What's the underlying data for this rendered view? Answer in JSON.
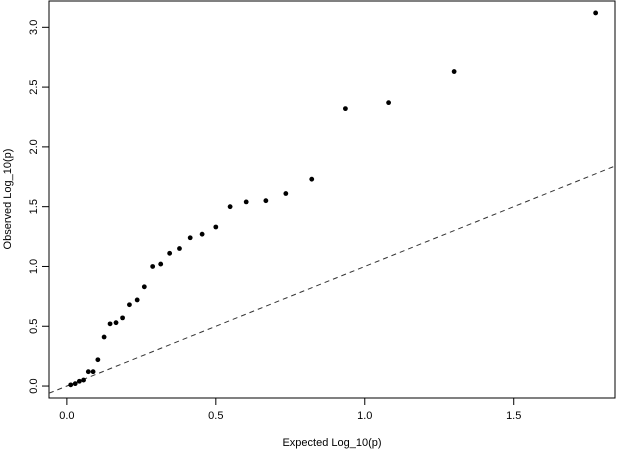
{
  "chart_data": {
    "type": "scatter",
    "title": "",
    "xlabel": "Expected Log_10(p)",
    "ylabel": "Observed Log_10(p)",
    "xlim": [
      -0.06,
      1.84
    ],
    "ylim": [
      -0.1,
      3.22
    ],
    "xticks": [
      "0.0",
      "0.5",
      "1.0",
      "1.5"
    ],
    "yticks": [
      "0.0",
      "0.5",
      "1.0",
      "1.5",
      "2.0",
      "2.5",
      "3.0"
    ],
    "grid": false,
    "reference_line": {
      "style": "dashed",
      "slope": 1,
      "intercept": 0
    },
    "points": {
      "x": [
        0.013,
        0.028,
        0.042,
        0.056,
        0.072,
        0.088,
        0.104,
        0.125,
        0.145,
        0.165,
        0.187,
        0.21,
        0.236,
        0.26,
        0.288,
        0.315,
        0.345,
        0.378,
        0.414,
        0.454,
        0.5,
        0.548,
        0.602,
        0.668,
        0.735,
        0.822,
        0.935,
        1.08,
        1.3,
        1.775
      ],
      "y": [
        0.01,
        0.02,
        0.04,
        0.05,
        0.12,
        0.12,
        0.22,
        0.41,
        0.52,
        0.53,
        0.57,
        0.68,
        0.72,
        0.83,
        1.0,
        1.02,
        1.11,
        1.15,
        1.24,
        1.27,
        1.33,
        1.5,
        1.54,
        1.55,
        1.61,
        1.73,
        2.32,
        2.37,
        2.63,
        3.12
      ]
    }
  }
}
